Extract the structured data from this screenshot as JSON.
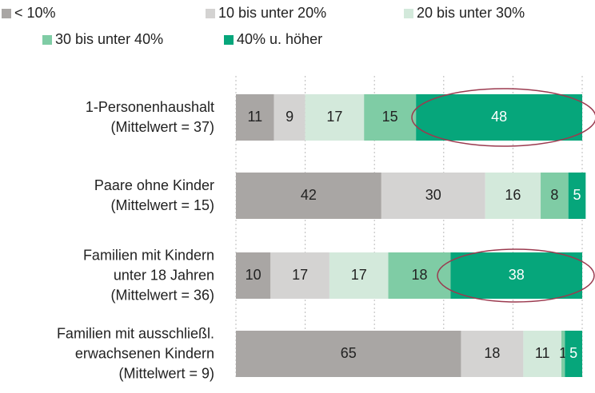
{
  "chart_data": {
    "type": "stacked-bar-horizontal",
    "categories": [
      "1-Personenhaushalt\n(Mittelwert = 37)",
      "Paare ohne Kinder\n(Mittelwert = 15)",
      "Familien mit Kindern\nunter 18 Jahren\n(Mittelwert = 36)",
      "Familien mit ausschließl.\nerwachsenen Kindern\n(Mittelwert = 9)"
    ],
    "series": [
      {
        "name": "< 10%",
        "color": "#a9a6a4",
        "values": [
          11,
          42,
          10,
          65
        ]
      },
      {
        "name": "10 bis unter 20%",
        "color": "#d4d3d2",
        "values": [
          9,
          30,
          17,
          18
        ]
      },
      {
        "name": "20 bis unter 30%",
        "color": "#d3e9db",
        "values": [
          17,
          16,
          17,
          11
        ]
      },
      {
        "name": "30 bis unter 40%",
        "color": "#7fcca5",
        "values": [
          15,
          8,
          18,
          1
        ]
      },
      {
        "name": "40% u. höher",
        "color": "#06a67b",
        "values": [
          48,
          5,
          38,
          5
        ]
      }
    ],
    "xlim": [
      0,
      100
    ],
    "xticks": [
      0,
      20,
      40,
      60,
      80,
      100
    ],
    "grid": true
  }
}
